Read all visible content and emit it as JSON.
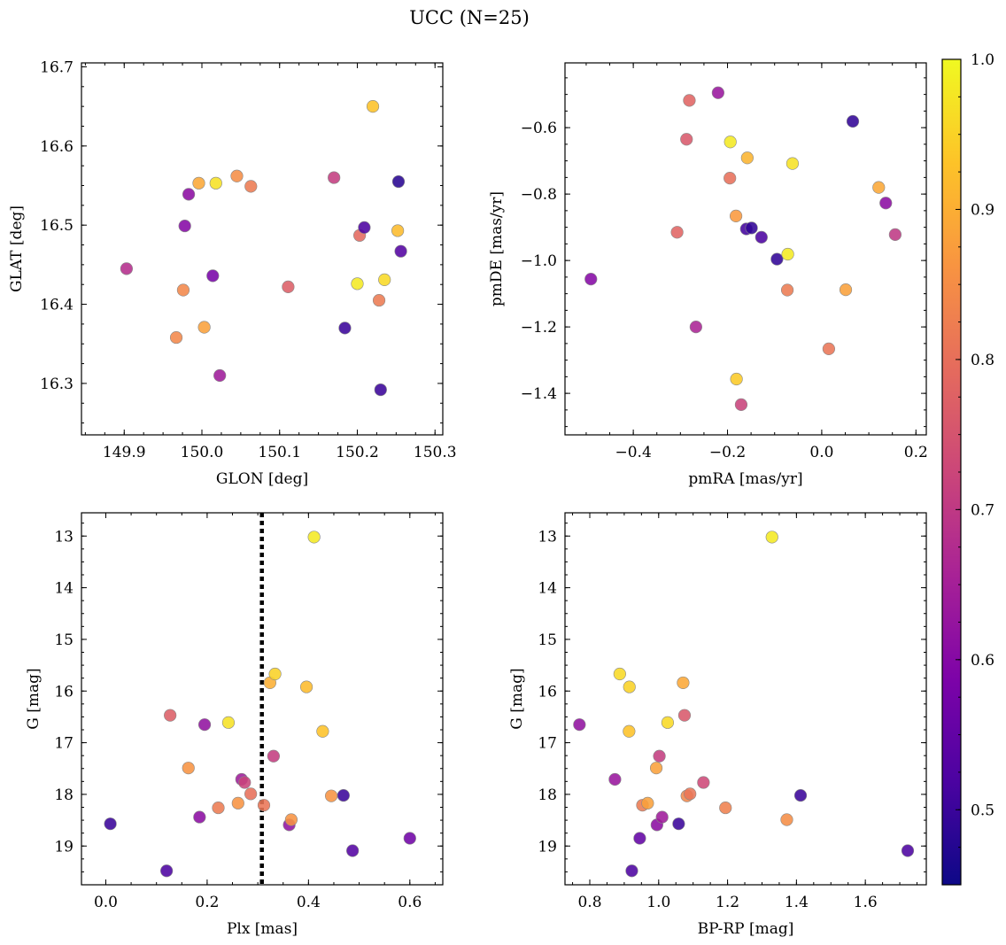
{
  "figure": {
    "title": "UCC (N=25)"
  },
  "colorbar": {
    "colormap": "plasma",
    "range": [
      0.45,
      1.0
    ],
    "ticks": [
      0.5,
      0.6,
      0.7,
      0.8,
      0.9,
      1.0
    ],
    "tick_labels": [
      "0.5",
      "0.6",
      "0.7",
      "0.8",
      "0.9",
      "1.0"
    ]
  },
  "chart_data": [
    {
      "id": "glon-glat",
      "type": "scatter",
      "xlabel": "GLON [deg]",
      "ylabel": "GLAT [deg]",
      "xlim": [
        149.845,
        150.31
      ],
      "ylim": [
        16.235,
        16.705
      ],
      "invert_y": false,
      "grid": false,
      "xticks": [
        149.9,
        150.0,
        150.1,
        150.2,
        150.3
      ],
      "xtick_labels": [
        "149.9",
        "150.0",
        "150.1",
        "150.2",
        "150.3"
      ],
      "yticks": [
        16.3,
        16.4,
        16.5,
        16.6,
        16.7
      ],
      "ytick_labels": [
        "16.3",
        "16.4",
        "16.5",
        "16.6",
        "16.7"
      ],
      "points": [
        {
          "x": 149.903,
          "y": 16.445,
          "c": 0.68
        },
        {
          "x": 149.967,
          "y": 16.358,
          "c": 0.84
        },
        {
          "x": 149.976,
          "y": 16.418,
          "c": 0.84
        },
        {
          "x": 149.978,
          "y": 16.499,
          "c": 0.6
        },
        {
          "x": 149.983,
          "y": 16.539,
          "c": 0.61
        },
        {
          "x": 149.996,
          "y": 16.553,
          "c": 0.89
        },
        {
          "x": 150.003,
          "y": 16.371,
          "c": 0.88
        },
        {
          "x": 150.014,
          "y": 16.436,
          "c": 0.58
        },
        {
          "x": 150.018,
          "y": 16.553,
          "c": 0.97
        },
        {
          "x": 150.023,
          "y": 16.31,
          "c": 0.64
        },
        {
          "x": 150.045,
          "y": 16.562,
          "c": 0.85
        },
        {
          "x": 150.063,
          "y": 16.549,
          "c": 0.82
        },
        {
          "x": 150.111,
          "y": 16.422,
          "c": 0.77
        },
        {
          "x": 150.17,
          "y": 16.56,
          "c": 0.71
        },
        {
          "x": 150.184,
          "y": 16.37,
          "c": 0.5
        },
        {
          "x": 150.2,
          "y": 16.426,
          "c": 0.98
        },
        {
          "x": 150.203,
          "y": 16.487,
          "c": 0.79
        },
        {
          "x": 150.209,
          "y": 16.497,
          "c": 0.52
        },
        {
          "x": 150.22,
          "y": 16.65,
          "c": 0.93
        },
        {
          "x": 150.228,
          "y": 16.405,
          "c": 0.82
        },
        {
          "x": 150.23,
          "y": 16.292,
          "c": 0.5
        },
        {
          "x": 150.235,
          "y": 16.431,
          "c": 0.96
        },
        {
          "x": 150.252,
          "y": 16.493,
          "c": 0.92
        },
        {
          "x": 150.253,
          "y": 16.555,
          "c": 0.48
        },
        {
          "x": 150.256,
          "y": 16.467,
          "c": 0.53
        }
      ]
    },
    {
      "id": "pmra-pmde",
      "type": "scatter",
      "xlabel": "pmRA [mas/yr]",
      "ylabel": "pmDE [mas/yr]",
      "xlim": [
        -0.545,
        0.222
      ],
      "ylim": [
        -1.525,
        -0.405
      ],
      "invert_y": false,
      "grid": false,
      "xticks": [
        -0.4,
        -0.2,
        0.0,
        0.2
      ],
      "xtick_labels": [
        "−0.4",
        "−0.2",
        "0.0",
        "0.2"
      ],
      "yticks": [
        -1.4,
        -1.2,
        -1.0,
        -0.8,
        -0.6
      ],
      "ytick_labels": [
        "−1.4",
        "−1.2",
        "−1.0",
        "−0.8",
        "−0.6"
      ],
      "points": [
        {
          "x": -0.49,
          "y": -1.056,
          "c": 0.6
        },
        {
          "x": -0.307,
          "y": -0.915,
          "c": 0.78
        },
        {
          "x": -0.287,
          "y": -0.635,
          "c": 0.76
        },
        {
          "x": -0.281,
          "y": -0.518,
          "c": 0.78
        },
        {
          "x": -0.267,
          "y": -1.2,
          "c": 0.66
        },
        {
          "x": -0.22,
          "y": -0.495,
          "c": 0.63
        },
        {
          "x": -0.195,
          "y": -0.752,
          "c": 0.8
        },
        {
          "x": -0.194,
          "y": -0.643,
          "c": 0.98
        },
        {
          "x": -0.182,
          "y": -0.866,
          "c": 0.87
        },
        {
          "x": -0.181,
          "y": -1.357,
          "c": 0.94
        },
        {
          "x": -0.171,
          "y": -1.434,
          "c": 0.72
        },
        {
          "x": -0.16,
          "y": -0.905,
          "c": 0.51
        },
        {
          "x": -0.158,
          "y": -0.691,
          "c": 0.91
        },
        {
          "x": -0.149,
          "y": -0.902,
          "c": 0.49
        },
        {
          "x": -0.128,
          "y": -0.93,
          "c": 0.52
        },
        {
          "x": -0.095,
          "y": -0.996,
          "c": 0.49
        },
        {
          "x": -0.073,
          "y": -1.089,
          "c": 0.82
        },
        {
          "x": -0.072,
          "y": -0.981,
          "c": 0.98
        },
        {
          "x": -0.062,
          "y": -0.708,
          "c": 0.97
        },
        {
          "x": 0.015,
          "y": -1.266,
          "c": 0.81
        },
        {
          "x": 0.051,
          "y": -1.088,
          "c": 0.88
        },
        {
          "x": 0.066,
          "y": -0.581,
          "c": 0.49
        },
        {
          "x": 0.121,
          "y": -0.78,
          "c": 0.89
        },
        {
          "x": 0.136,
          "y": -0.827,
          "c": 0.61
        },
        {
          "x": 0.156,
          "y": -0.922,
          "c": 0.7
        }
      ]
    },
    {
      "id": "plx-g",
      "type": "scatter",
      "xlabel": "Plx [mas]",
      "ylabel": "G [mag]",
      "xlim": [
        -0.048,
        0.665
      ],
      "ylim": [
        12.55,
        19.75
      ],
      "invert_y": true,
      "grid": false,
      "vline": {
        "x": 0.308,
        "style": "dotted"
      },
      "xticks": [
        0.0,
        0.2,
        0.4,
        0.6
      ],
      "xtick_labels": [
        "0.0",
        "0.2",
        "0.4",
        "0.6"
      ],
      "yticks": [
        13,
        14,
        15,
        16,
        17,
        18,
        19
      ],
      "ytick_labels": [
        "13",
        "14",
        "15",
        "16",
        "17",
        "18",
        "19"
      ],
      "points": [
        {
          "x": 0.009,
          "y": 18.57,
          "c": 0.5
        },
        {
          "x": 0.12,
          "y": 19.48,
          "c": 0.52
        },
        {
          "x": 0.127,
          "y": 16.47,
          "c": 0.77
        },
        {
          "x": 0.163,
          "y": 17.49,
          "c": 0.86
        },
        {
          "x": 0.185,
          "y": 18.44,
          "c": 0.61
        },
        {
          "x": 0.195,
          "y": 16.65,
          "c": 0.62
        },
        {
          "x": 0.222,
          "y": 18.26,
          "c": 0.82
        },
        {
          "x": 0.242,
          "y": 16.61,
          "c": 0.97
        },
        {
          "x": 0.261,
          "y": 18.17,
          "c": 0.86
        },
        {
          "x": 0.268,
          "y": 17.71,
          "c": 0.64
        },
        {
          "x": 0.274,
          "y": 17.77,
          "c": 0.72
        },
        {
          "x": 0.286,
          "y": 17.99,
          "c": 0.8
        },
        {
          "x": 0.312,
          "y": 18.21,
          "c": 0.81
        },
        {
          "x": 0.324,
          "y": 15.84,
          "c": 0.9
        },
        {
          "x": 0.331,
          "y": 17.26,
          "c": 0.71
        },
        {
          "x": 0.334,
          "y": 15.67,
          "c": 0.95
        },
        {
          "x": 0.362,
          "y": 18.59,
          "c": 0.62
        },
        {
          "x": 0.366,
          "y": 18.49,
          "c": 0.86
        },
        {
          "x": 0.396,
          "y": 15.92,
          "c": 0.92
        },
        {
          "x": 0.411,
          "y": 13.02,
          "c": 0.98
        },
        {
          "x": 0.428,
          "y": 16.78,
          "c": 0.93
        },
        {
          "x": 0.445,
          "y": 18.03,
          "c": 0.86
        },
        {
          "x": 0.469,
          "y": 18.02,
          "c": 0.5
        },
        {
          "x": 0.487,
          "y": 19.09,
          "c": 0.53
        },
        {
          "x": 0.6,
          "y": 18.85,
          "c": 0.57
        }
      ]
    },
    {
      "id": "bprp-g",
      "type": "scatter",
      "xlabel": "BP-RP [mag]",
      "ylabel": "G [mag]",
      "xlim": [
        0.728,
        1.777
      ],
      "ylim": [
        12.55,
        19.75
      ],
      "invert_y": true,
      "grid": false,
      "xticks": [
        0.8,
        1.0,
        1.2,
        1.4,
        1.6
      ],
      "xtick_labels": [
        "0.8",
        "1.0",
        "1.2",
        "1.4",
        "1.6"
      ],
      "yticks": [
        13,
        14,
        15,
        16,
        17,
        18,
        19
      ],
      "ytick_labels": [
        "13",
        "14",
        "15",
        "16",
        "17",
        "18",
        "19"
      ],
      "points": [
        {
          "x": 0.77,
          "y": 16.65,
          "c": 0.62
        },
        {
          "x": 0.873,
          "y": 17.71,
          "c": 0.63
        },
        {
          "x": 0.887,
          "y": 15.67,
          "c": 0.96
        },
        {
          "x": 0.914,
          "y": 16.78,
          "c": 0.93
        },
        {
          "x": 0.915,
          "y": 15.92,
          "c": 0.95
        },
        {
          "x": 0.922,
          "y": 19.48,
          "c": 0.52
        },
        {
          "x": 0.945,
          "y": 18.85,
          "c": 0.55
        },
        {
          "x": 0.953,
          "y": 18.21,
          "c": 0.82
        },
        {
          "x": 0.968,
          "y": 18.17,
          "c": 0.88
        },
        {
          "x": 0.993,
          "y": 17.49,
          "c": 0.88
        },
        {
          "x": 0.995,
          "y": 18.59,
          "c": 0.61
        },
        {
          "x": 1.002,
          "y": 17.26,
          "c": 0.71
        },
        {
          "x": 1.01,
          "y": 18.44,
          "c": 0.64
        },
        {
          "x": 1.026,
          "y": 16.61,
          "c": 0.96
        },
        {
          "x": 1.058,
          "y": 18.57,
          "c": 0.5
        },
        {
          "x": 1.071,
          "y": 15.84,
          "c": 0.89
        },
        {
          "x": 1.075,
          "y": 16.47,
          "c": 0.76
        },
        {
          "x": 1.082,
          "y": 18.03,
          "c": 0.84
        },
        {
          "x": 1.091,
          "y": 17.99,
          "c": 0.81
        },
        {
          "x": 1.13,
          "y": 17.77,
          "c": 0.73
        },
        {
          "x": 1.194,
          "y": 18.26,
          "c": 0.83
        },
        {
          "x": 1.329,
          "y": 13.02,
          "c": 0.98
        },
        {
          "x": 1.372,
          "y": 18.49,
          "c": 0.85
        },
        {
          "x": 1.412,
          "y": 18.02,
          "c": 0.5
        },
        {
          "x": 1.723,
          "y": 19.09,
          "c": 0.52
        }
      ]
    }
  ]
}
